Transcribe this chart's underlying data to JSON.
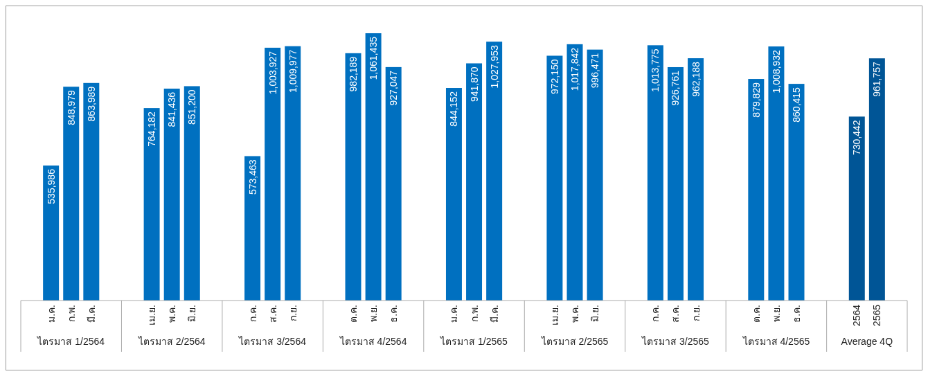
{
  "chart_data": {
    "type": "bar",
    "categories": [
      "ม.ค.",
      "ก.พ.",
      "มี.ค.",
      null,
      "เม.ย.",
      "พ.ค.",
      "มิ.ย.",
      null,
      "ก.ค.",
      "ส.ค.",
      "ก.ย.",
      null,
      "ต.ค.",
      "พ.ย.",
      "ธ.ค.",
      null,
      "ม.ค.",
      "ก.พ.",
      "มี.ค.",
      null,
      "เม.ย.",
      "พ.ค.",
      "มิ.ย.",
      null,
      "ก.ค.",
      "ส.ค.",
      "ก.ย.",
      null,
      "ต.ค.",
      "พ.ย.",
      "ธ.ค.",
      null,
      "2564",
      "2565"
    ],
    "values": [
      535986,
      848979,
      863989,
      null,
      764182,
      841436,
      851200,
      null,
      573463,
      1003927,
      1009977,
      null,
      982189,
      1061435,
      927047,
      null,
      844152,
      941870,
      1027953,
      null,
      972150,
      1017842,
      996471,
      null,
      1013775,
      926761,
      962188,
      null,
      879829,
      1008932,
      860415,
      null,
      730442,
      961757
    ],
    "value_labels": [
      "535,986",
      "848,979",
      "863,989",
      null,
      "764,182",
      "841,436",
      "851,200",
      null,
      "573,463",
      "1,003,927",
      "1,009,977",
      null,
      "982,189",
      "1,061,435",
      "927,047",
      null,
      "844,152",
      "941,870",
      "1,027,953",
      null,
      "972,150",
      "1,017,842",
      "996,471",
      null,
      "1,013,775",
      "926,761",
      "962,188",
      null,
      "879,829",
      "1,008,932",
      "860,415",
      null,
      "730,442",
      "961,757"
    ],
    "colors": [
      "#0070c0",
      "#0070c0",
      "#0070c0",
      null,
      "#0070c0",
      "#0070c0",
      "#0070c0",
      null,
      "#0070c0",
      "#0070c0",
      "#0070c0",
      null,
      "#0070c0",
      "#0070c0",
      "#0070c0",
      null,
      "#0070c0",
      "#0070c0",
      "#0070c0",
      null,
      "#0070c0",
      "#0070c0",
      "#0070c0",
      null,
      "#0070c0",
      "#0070c0",
      "#0070c0",
      null,
      "#0070c0",
      "#0070c0",
      "#0070c0",
      null,
      "#005596",
      "#005596"
    ],
    "annotations": [
      "ไตรมาส 1/2564",
      "ไตรมาส 2/2564",
      "ไตรมาส 3/2564",
      "ไตรมาส 4/2564",
      "ไตรมาส 1/2565",
      "ไตรมาส 2/2565",
      "ไตรมาส 3/2565",
      "ไตรมาส 4/2565",
      "Average 4Q"
    ]
  }
}
